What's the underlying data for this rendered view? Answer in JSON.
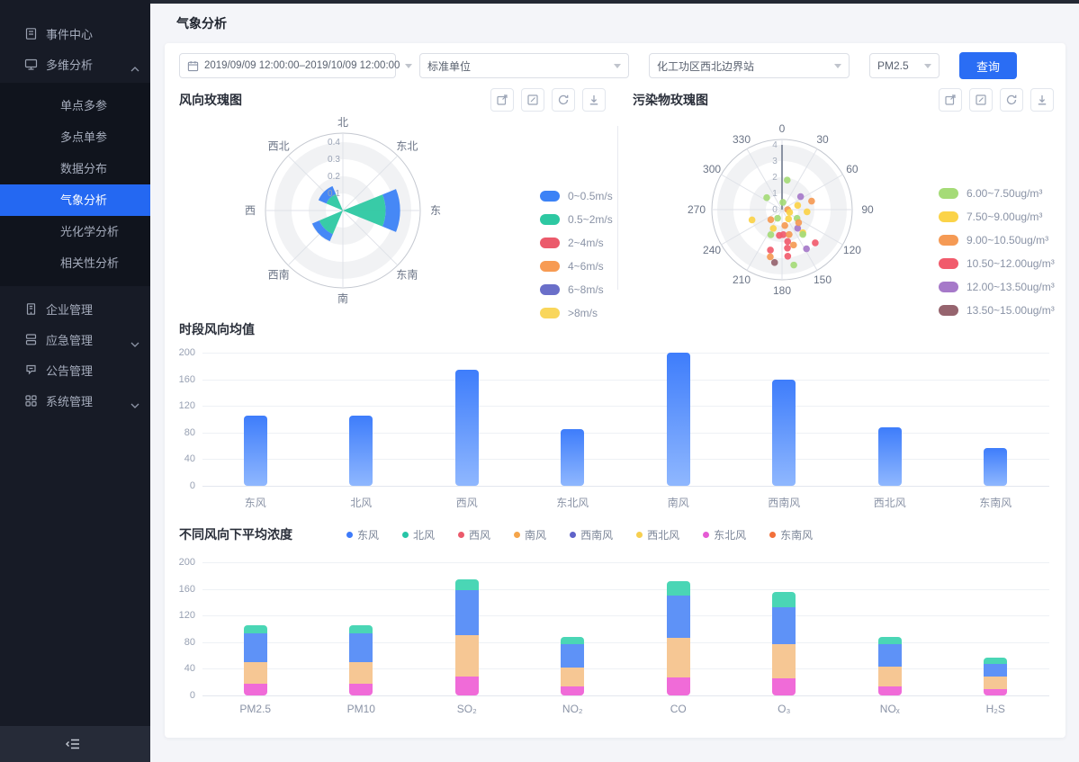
{
  "app": {
    "accent": "#2a6df4",
    "sidebar_bg": "#171b26",
    "active_item_bg": "#2468f2"
  },
  "sidebar": {
    "items": {
      "event_center": "事件中心",
      "multi_analysis": "多维分析",
      "enterprise": "企业管理",
      "emergency": "应急管理",
      "notice": "公告管理",
      "system": "系统管理"
    },
    "submenu": [
      "单点多参",
      "多点单参",
      "数据分布",
      "气象分析",
      "光化学分析",
      "相关性分析"
    ],
    "active_submenu": "气象分析"
  },
  "header": {
    "title": "气象分析"
  },
  "filters": {
    "date_range": "2019/09/09 12:00:00–2019/10/09 12:00:00",
    "unit": "标准单位",
    "station": "化工功区西北边界站",
    "pollutant": "PM2.5",
    "query_label": "查询"
  },
  "toolbar_icons": [
    "open-in-new",
    "edit",
    "refresh",
    "download"
  ],
  "wind_rose": {
    "title": "风向玫瑰图",
    "compass": [
      "北",
      "东北",
      "东",
      "东南",
      "南",
      "西南",
      "西",
      "西北"
    ],
    "radial_ticks": [
      "0.1",
      "0.2",
      "0.3",
      "0.4"
    ],
    "legend": [
      {
        "label": "0~0.5m/s",
        "color": "#3c82f6"
      },
      {
        "label": "0.5~2m/s",
        "color": "#2dc8a2"
      },
      {
        "label": "2~4m/s",
        "color": "#eb5a6b"
      },
      {
        "label": "4~6m/s",
        "color": "#f79b53"
      },
      {
        "label": "6~8m/s",
        "color": "#6a6fc9"
      },
      {
        "label": ">8m/s",
        "color": "#f9d65b"
      }
    ]
  },
  "pollutant_rose": {
    "title": "污染物玫瑰图",
    "angle_labels": [
      "0",
      "30",
      "60",
      "90",
      "120",
      "150",
      "180",
      "210",
      "240",
      "270",
      "300",
      "330"
    ],
    "radial_ticks": [
      "0",
      "1",
      "2",
      "3",
      "4"
    ],
    "legend": [
      {
        "label": "6.00~7.50ug/m³",
        "color": "#a5db77"
      },
      {
        "label": "7.50~9.00ug/m³",
        "color": "#fbd348"
      },
      {
        "label": "9.00~10.50ug/m³",
        "color": "#f59a54"
      },
      {
        "label": "10.50~12.00ug/m³",
        "color": "#f15b6c"
      },
      {
        "label": "12.00~13.50ug/m³",
        "color": "#a679c9"
      },
      {
        "label": "13.50~15.00ug/m³",
        "color": "#96646e"
      }
    ]
  },
  "wind_avg": {
    "title": "时段风向均值"
  },
  "concentration": {
    "title": "不同风向下平均浓度",
    "legend": [
      {
        "label": "东风",
        "color": "#3e7bfa"
      },
      {
        "label": "北风",
        "color": "#27c5a7"
      },
      {
        "label": "西风",
        "color": "#eb5a6b"
      },
      {
        "label": "南风",
        "color": "#f5a54a"
      },
      {
        "label": "西南风",
        "color": "#5f63c9"
      },
      {
        "label": "西北风",
        "color": "#f7cf4f"
      },
      {
        "label": "东北风",
        "color": "#e55bd4"
      },
      {
        "label": "东南风",
        "color": "#f2703a"
      }
    ]
  },
  "chart_data": [
    {
      "type": "rose-stacked-bar",
      "title": "风向玫瑰图",
      "categories": [
        "北",
        "东北",
        "东",
        "东南",
        "南",
        "西南",
        "西",
        "西北"
      ],
      "rlim": [
        0,
        0.45
      ],
      "rticks": [
        0.1,
        0.2,
        0.3,
        0.4
      ],
      "series": [
        {
          "name": "0.5~2m/s",
          "color": "#2dc8a2",
          "values": [
            0,
            0,
            0.25,
            0,
            0,
            0.15,
            0,
            0.105
          ]
        },
        {
          "name": "0~0.5m/s",
          "color": "#3c82f6",
          "values": [
            0,
            0,
            0.085,
            0,
            0,
            0.045,
            0,
            0.05
          ]
        }
      ]
    },
    {
      "type": "polar-scatter",
      "title": "污染物玫瑰图",
      "angle_ticks": [
        0,
        30,
        60,
        90,
        120,
        150,
        180,
        210,
        240,
        270,
        300,
        330
      ],
      "rlim": [
        0,
        4
      ],
      "classes": [
        "6.00~7.50ug/m³",
        "7.50~9.00ug/m³",
        "9.00~10.50ug/m³",
        "10.50~12.00ug/m³",
        "12.00~13.50ug/m³",
        "13.50~15.00ug/m³"
      ],
      "points_angle_radius_class": [
        [
          7,
          0.45,
          0
        ],
        [
          10,
          1.85,
          0
        ],
        [
          308,
          1.2,
          0
        ],
        [
          55,
          1.4,
          4
        ],
        [
          74,
          1.9,
          2
        ],
        [
          75,
          1.0,
          1
        ],
        [
          251,
          1.96,
          1
        ],
        [
          228,
          0.93,
          2
        ],
        [
          207,
          0.6,
          0
        ],
        [
          145,
          0.7,
          1
        ],
        [
          120,
          1.07,
          0
        ],
        [
          205,
          1.28,
          1
        ],
        [
          170,
          1.0,
          2
        ],
        [
          140,
          1.5,
          4
        ],
        [
          138,
          1.92,
          1
        ],
        [
          204,
          1.7,
          0
        ],
        [
          186,
          1.6,
          3
        ],
        [
          177,
          1.55,
          3
        ],
        [
          164,
          1.6,
          2
        ],
        [
          140,
          2.0,
          0
        ],
        [
          135,
          2.9,
          3
        ],
        [
          170,
          2.0,
          3
        ],
        [
          162,
          2.3,
          2
        ],
        [
          148,
          2.85,
          4
        ],
        [
          196,
          2.6,
          3
        ],
        [
          172,
          2.4,
          3
        ],
        [
          194,
          3.0,
          2
        ],
        [
          173,
          2.9,
          3
        ],
        [
          188,
          3.3,
          5
        ],
        [
          168,
          3.5,
          0
        ],
        [
          90,
          0.35,
          2
        ],
        [
          110,
          0.5,
          1
        ],
        [
          95,
          1.55,
          1
        ],
        [
          128,
          1.3,
          2
        ]
      ]
    },
    {
      "type": "bar",
      "title": "时段风向均值",
      "categories": [
        "东风",
        "北风",
        "西风",
        "东北风",
        "南风",
        "西南风",
        "西北风",
        "东南风"
      ],
      "values": [
        105,
        105,
        175,
        85,
        200,
        160,
        88,
        57
      ],
      "ylim": [
        0,
        200
      ],
      "yticks": [
        0,
        40,
        80,
        120,
        160,
        200
      ]
    },
    {
      "type": "stacked-bar",
      "title": "不同风向下平均浓度",
      "categories": [
        "PM2.5",
        "PM10",
        "SO₂",
        "NO₂",
        "CO",
        "O₃",
        "NOₓ",
        "H₂S"
      ],
      "ylim": [
        0,
        200
      ],
      "yticks": [
        0,
        40,
        80,
        120,
        160,
        200
      ],
      "segments": [
        {
          "color": "#f06bd8",
          "values": [
            17,
            17,
            28,
            14,
            27,
            26,
            14,
            10
          ]
        },
        {
          "color": "#f6c794",
          "values": [
            33,
            33,
            62,
            28,
            60,
            51,
            29,
            18
          ]
        },
        {
          "color": "#5e92f7",
          "values": [
            43,
            43,
            68,
            35,
            63,
            55,
            34,
            19
          ]
        },
        {
          "color": "#4ad6b5",
          "values": [
            12,
            12,
            17,
            11,
            22,
            24,
            11,
            10
          ]
        }
      ]
    }
  ]
}
